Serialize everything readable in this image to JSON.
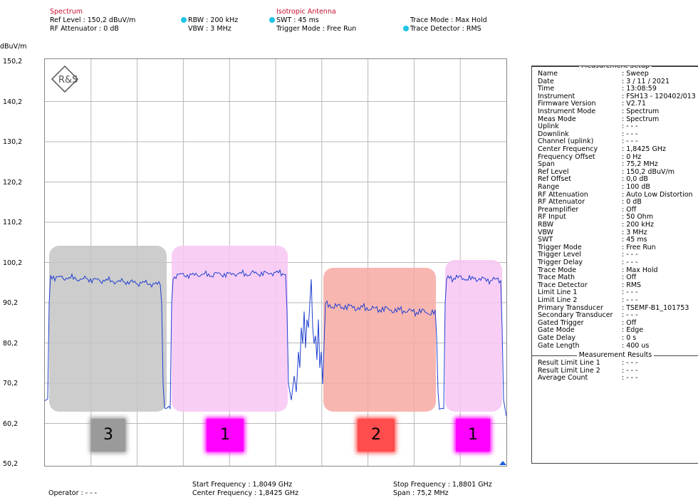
{
  "header": {
    "spectrum_title": "Spectrum",
    "ref_level": "Ref Level       : 150,2 dBuV/m",
    "rf_atten": "RF Attenuator :   0   dB",
    "rbw": "RBW : 200 kHz",
    "vbw": "VBW :    3 MHz",
    "antenna_title": "Isotropic Antenna",
    "swt": "SWT              : 45 ms",
    "trigger_mode": "Trigger Mode : Free Run",
    "trace_mode": "Trace Mode     : Max Hold",
    "trace_detector": "Trace Detector : RMS",
    "unit": "dBuV/m",
    "indicator_color": "#1fc4e6"
  },
  "y_ticks": [
    "150,2",
    "140,2",
    "130,2",
    "120,2",
    "110,2",
    "100,2",
    "90,2",
    "80,2",
    "70,2",
    "60,2",
    "50,2"
  ],
  "footer": {
    "operator": "Operator : - - -",
    "start_freq": "Start Frequency   : 1,8049 GHz",
    "center_freq": "Center Frequency : 1,8425 GHz",
    "stop_freq": "Stop Frequency :  1,8801 GHz",
    "span": "Span                 : 75,2    MHz"
  },
  "measurement_setup": {
    "title": "Measurement Setup",
    "rows": [
      [
        "Name",
        ": Sweep"
      ],
      [
        "Date",
        ": 3 / 11 / 2021"
      ],
      [
        "Time",
        ": 13:08:59"
      ],
      [
        "Instrument",
        ": FSH13 - 120402/013"
      ],
      [
        "Firmware Version",
        ": V2.71"
      ],
      [
        "Instrument Mode",
        ": Spectrum"
      ],
      [
        "Meas Mode",
        ": Spectrum"
      ],
      [
        "Uplink",
        ": - - -"
      ],
      [
        "Downlink",
        ": - - -"
      ],
      [
        "Channel (uplink)",
        ": - - -"
      ],
      [
        "Center Frequency",
        ":    1,8425 GHz"
      ],
      [
        "Frequency Offset",
        ":    0          Hz"
      ],
      [
        "Span",
        ":  75,2      MHz"
      ],
      [
        "Ref Level",
        ": 150,2     dBuV/m"
      ],
      [
        "Ref Offset",
        ":    0,0      dB"
      ],
      [
        "Range",
        ": 100        dB"
      ],
      [
        "RF Attenuation",
        ": Auto Low Distortion"
      ],
      [
        "RF Attenuator",
        ":    0         dB"
      ],
      [
        "Preamplifier",
        ": Off"
      ],
      [
        "RF Input",
        ": 50 Ohm"
      ],
      [
        "RBW",
        ": 200         kHz"
      ],
      [
        "VBW",
        ":    3          MHz"
      ],
      [
        "SWT",
        ":   45         ms"
      ],
      [
        "Trigger Mode",
        ": Free Run"
      ],
      [
        "Trigger Level",
        ": - - -"
      ],
      [
        "Trigger Delay",
        ": - - -"
      ],
      [
        "Trace Mode",
        ": Max Hold"
      ],
      [
        "Trace Math",
        ": Off"
      ],
      [
        "Trace Detector",
        ": RMS"
      ],
      [
        "Limit Line 1",
        ": - - -"
      ],
      [
        "Limit Line 2",
        ": - - -"
      ],
      [
        "Primary Transducer",
        ": TSEMF-B1_101753"
      ],
      [
        "Secondary Transducer",
        ": - - -"
      ],
      [
        "Gated Trigger",
        ": Off"
      ],
      [
        "Gate Mode",
        ": Edge"
      ],
      [
        "Gate Delay",
        ":    0          s"
      ],
      [
        "Gate Length",
        ": 400         us"
      ]
    ]
  },
  "measurement_results": {
    "title": "Measurement Results",
    "rows": [
      [
        "Result Limit Line 1",
        ": - - -"
      ],
      [
        "Result Limit Line 2",
        ": - - -"
      ],
      [
        "Average Count",
        ": - - -"
      ]
    ]
  },
  "bands": [
    {
      "label": "3",
      "box_color": "#c4c4c4",
      "label_color": "#9a9a9a"
    },
    {
      "label": "1",
      "box_color": "#f7c5f3",
      "label_color": "#ff00ff"
    },
    {
      "label": "2",
      "box_color": "#f7a9a3",
      "label_color": "#ff4c4c"
    },
    {
      "label": "1",
      "box_color": "#f7c5f3",
      "label_color": "#ff00ff"
    }
  ],
  "trace_color": "#1f3fd0",
  "logo": "R&S"
}
